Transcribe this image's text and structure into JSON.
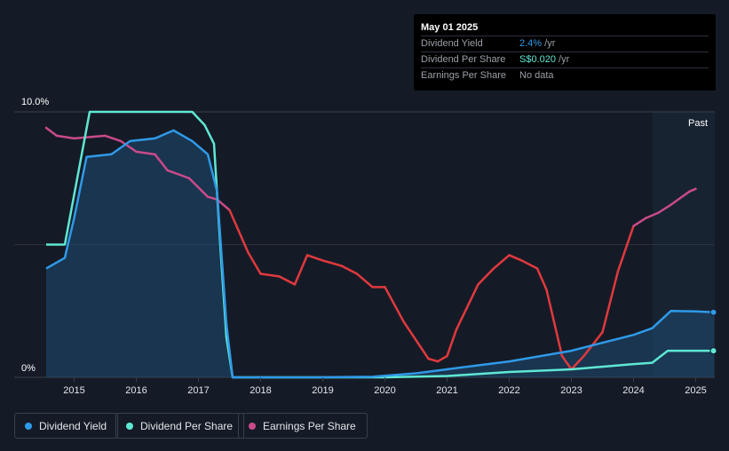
{
  "tooltip": {
    "date": "May 01 2025",
    "rows": [
      {
        "label": "Dividend Yield",
        "value": "2.4%",
        "unit": " /yr"
      },
      {
        "label": "Dividend Per Share",
        "value": "S$0.020",
        "unit": " /yr"
      },
      {
        "label": "Earnings Per Share",
        "value": "No data",
        "unit": ""
      }
    ]
  },
  "legend": [
    {
      "label": "Dividend Yield",
      "color": "#2f9ae8"
    },
    {
      "label": "Dividend Per Share",
      "color": "#5ee8d3"
    },
    {
      "label": "Earnings Per Share",
      "color": "#c94a8a"
    }
  ],
  "chart_data": {
    "type": "line",
    "y_top_label": "10.0%",
    "y_bottom_label": "0%",
    "past_label": "Past",
    "xlim": [
      2014.55,
      2025.3
    ],
    "ylim": [
      0,
      10
    ],
    "x_ticks": [
      "2015",
      "2016",
      "2017",
      "2018",
      "2019",
      "2020",
      "2021",
      "2022",
      "2023",
      "2024",
      "2025"
    ],
    "colors": {
      "yield": "#2f9ae8",
      "dps": "#5ee8d3",
      "eps_up": "#c94a8a",
      "eps_down": "#e0393e"
    },
    "series": [
      {
        "name": "Dividend Yield",
        "x": [
          2014.55,
          2014.85,
          2015.0,
          2015.2,
          2015.6,
          2015.9,
          2016.3,
          2016.6,
          2016.9,
          2017.15,
          2017.3,
          2017.45,
          2017.55,
          2018,
          2019,
          2019.8,
          2020.5,
          2021,
          2021.5,
          2022,
          2022.5,
          2023,
          2023.5,
          2024,
          2024.3,
          2024.6,
          2025,
          2025.3
        ],
        "y": [
          4.1,
          4.5,
          6.0,
          8.3,
          8.4,
          8.9,
          9.0,
          9.3,
          8.9,
          8.4,
          7.0,
          2.0,
          0.0,
          0.0,
          0.0,
          0.02,
          0.15,
          0.3,
          0.45,
          0.6,
          0.8,
          1.0,
          1.3,
          1.6,
          1.85,
          2.5,
          2.48,
          2.45
        ]
      },
      {
        "name": "Dividend Per Share",
        "x": [
          2014.55,
          2014.85,
          2015.05,
          2015.25,
          2015.7,
          2016.3,
          2016.9,
          2017.1,
          2017.25,
          2017.35,
          2017.45,
          2017.55,
          2018,
          2019,
          2020,
          2021,
          2022,
          2023,
          2024,
          2024.3,
          2024.55,
          2025,
          2025.3
        ],
        "y": [
          5.0,
          5.0,
          7.5,
          10.0,
          10.0,
          10.0,
          10.0,
          9.5,
          8.8,
          5.0,
          1.5,
          0.0,
          0.0,
          0.0,
          0.0,
          0.05,
          0.2,
          0.3,
          0.5,
          0.55,
          1.0,
          1.0,
          1.0
        ]
      },
      {
        "name": "Earnings Per Share",
        "x": [
          2014.55,
          2014.72,
          2015.0,
          2015.5,
          2015.75,
          2016.0,
          2016.3,
          2016.5,
          2016.85,
          2017.15,
          2017.3,
          2017.5,
          2017.8,
          2018.0,
          2018.3,
          2018.55,
          2018.75,
          2019.0,
          2019.3,
          2019.55,
          2019.8,
          2020.0,
          2020.3,
          2020.7,
          2020.85,
          2021.0,
          2021.15,
          2021.5,
          2021.75,
          2022.0,
          2022.2,
          2022.45,
          2022.6,
          2022.85,
          2023.0,
          2023.2,
          2023.5,
          2023.75,
          2024.0,
          2024.2,
          2024.4,
          2024.6,
          2024.9,
          2025.0
        ],
        "y": [
          9.4,
          9.1,
          9.0,
          9.1,
          8.9,
          8.5,
          8.4,
          7.8,
          7.5,
          6.8,
          6.7,
          6.3,
          4.7,
          3.9,
          3.8,
          3.5,
          4.6,
          4.4,
          4.2,
          3.9,
          3.4,
          3.4,
          2.1,
          0.7,
          0.6,
          0.8,
          1.8,
          3.5,
          4.1,
          4.6,
          4.4,
          4.1,
          3.3,
          0.8,
          0.3,
          0.8,
          1.7,
          4.0,
          5.7,
          6.0,
          6.2,
          6.5,
          7.0,
          7.1
        ]
      }
    ]
  }
}
